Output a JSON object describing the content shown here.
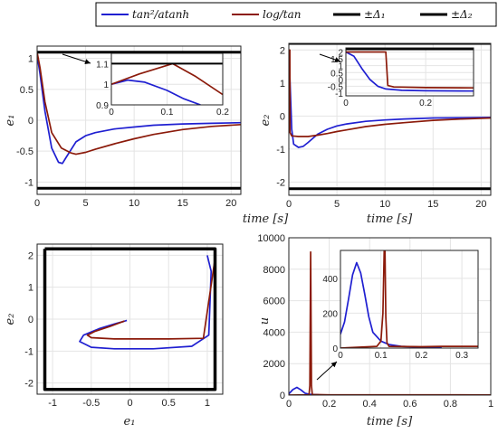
{
  "legend": [
    {
      "label": "tan²/atanh",
      "color": "#1f1fd1",
      "width": 2
    },
    {
      "label": "log/tan",
      "color": "#8b1a0a",
      "width": 2
    },
    {
      "label": "±Δ₁",
      "color": "#000000",
      "width": 3
    },
    {
      "label": "±Δ₂",
      "color": "#000000",
      "width": 3
    }
  ],
  "chart_data": [
    {
      "type": "line",
      "xlabel": "time [s]",
      "ylabel": "e₁",
      "xlim": [
        0,
        21
      ],
      "ylim": [
        -1.2,
        1.2
      ],
      "xticks": [
        0,
        5,
        10,
        15,
        20
      ],
      "xtick_labels": [
        "0",
        "5",
        "10",
        "15",
        "20"
      ],
      "yticks": [
        -1,
        -0.5,
        0,
        0.5,
        1
      ],
      "ytick_labels": [
        "-1",
        "-0.5",
        "0",
        "0.5",
        "1"
      ],
      "grid": true,
      "series": [
        {
          "color": "#1f1fd1",
          "x": [
            0,
            0.3,
            0.8,
            1.5,
            2.2,
            2.6,
            3,
            4,
            5,
            6,
            8,
            10,
            12,
            15,
            18,
            21
          ],
          "y": [
            1.05,
            0.75,
            0.15,
            -0.45,
            -0.68,
            -0.7,
            -0.6,
            -0.35,
            -0.25,
            -0.2,
            -0.14,
            -0.11,
            -0.08,
            -0.06,
            -0.05,
            -0.04
          ]
        },
        {
          "color": "#8b1a0a",
          "x": [
            0,
            0.3,
            0.8,
            1.5,
            2.5,
            3.5,
            4,
            5,
            6,
            8,
            10,
            12,
            15,
            18,
            21
          ],
          "y": [
            1.1,
            0.85,
            0.3,
            -0.2,
            -0.45,
            -0.53,
            -0.55,
            -0.52,
            -0.47,
            -0.38,
            -0.3,
            -0.23,
            -0.15,
            -0.1,
            -0.07
          ]
        },
        {
          "color": "#000000",
          "width": 3,
          "x": [
            0,
            21
          ],
          "y": [
            1.1,
            1.1
          ]
        },
        {
          "color": "#000000",
          "width": 3,
          "x": [
            0,
            21
          ],
          "y": [
            -1.1,
            -1.1
          ]
        }
      ],
      "inset": {
        "xlim": [
          0,
          0.2
        ],
        "ylim": [
          0.9,
          1.15
        ],
        "xticks": [
          0,
          0.1,
          0.2
        ],
        "xtick_labels": [
          "0",
          "0.1",
          "0.2"
        ],
        "yticks": [
          0.9,
          1,
          1.1
        ],
        "ytick_labels": [
          "0.9",
          "1",
          "1.1"
        ],
        "grid": true,
        "series": [
          {
            "color": "#1f1fd1",
            "x": [
              0,
              0.03,
              0.06,
              0.1,
              0.13,
              0.16
            ],
            "y": [
              1.0,
              1.02,
              1.01,
              0.97,
              0.93,
              0.9
            ]
          },
          {
            "color": "#8b1a0a",
            "x": [
              0,
              0.05,
              0.11,
              0.15,
              0.2
            ],
            "y": [
              1.0,
              1.05,
              1.1,
              1.04,
              0.95
            ]
          },
          {
            "color": "#000000",
            "width": 2,
            "x": [
              0,
              0.2
            ],
            "y": [
              1.1,
              1.1
            ]
          }
        ]
      }
    },
    {
      "type": "line",
      "xlabel": "time [s]",
      "ylabel": "e₂",
      "xlim": [
        0,
        21
      ],
      "ylim": [
        -2.4,
        2.2
      ],
      "xticks": [
        0,
        5,
        10,
        15,
        20
      ],
      "xtick_labels": [
        "0",
        "5",
        "10",
        "15",
        "20"
      ],
      "yticks": [
        -2,
        -1,
        0,
        1,
        2
      ],
      "ytick_labels": [
        "-2",
        "-1",
        "0",
        "1",
        "2"
      ],
      "grid": true,
      "series": [
        {
          "color": "#1f1fd1",
          "x": [
            0,
            0.1,
            0.3,
            0.5,
            1,
            1.5,
            2,
            3,
            4,
            5,
            6,
            8,
            10,
            12,
            15,
            18,
            21
          ],
          "y": [
            2.0,
            1.2,
            -0.4,
            -0.85,
            -0.95,
            -0.92,
            -0.8,
            -0.55,
            -0.4,
            -0.3,
            -0.24,
            -0.16,
            -0.12,
            -0.09,
            -0.06,
            -0.05,
            -0.04
          ]
        },
        {
          "color": "#8b1a0a",
          "x": [
            0,
            0.1,
            0.12,
            0.3,
            1,
            2,
            3,
            4,
            5,
            6,
            8,
            10,
            12,
            15,
            18,
            21
          ],
          "y": [
            2.0,
            2.0,
            -0.5,
            -0.6,
            -0.62,
            -0.62,
            -0.58,
            -0.53,
            -0.47,
            -0.42,
            -0.32,
            -0.25,
            -0.2,
            -0.13,
            -0.09,
            -0.06
          ]
        },
        {
          "color": "#000000",
          "width": 3,
          "x": [
            0,
            21
          ],
          "y": [
            2.2,
            2.2
          ]
        },
        {
          "color": "#000000",
          "width": 3,
          "x": [
            0,
            21
          ],
          "y": [
            -2.2,
            -2.2
          ]
        }
      ],
      "inset": {
        "xlim": [
          0,
          0.32
        ],
        "ylim": [
          -1.2,
          2.3
        ],
        "xticks": [
          0,
          0.2
        ],
        "xtick_labels": [
          "0",
          "0.2"
        ],
        "yticks": [
          -1,
          -0.5,
          0,
          0.5,
          1,
          1.5,
          2
        ],
        "ytick_labels": [
          "-1",
          "-0.5",
          "0",
          "0.5",
          "1",
          "1.5",
          "2"
        ],
        "grid": true,
        "series": [
          {
            "color": "#1f1fd1",
            "x": [
              0,
              0.02,
              0.04,
              0.06,
              0.08,
              0.1,
              0.14,
              0.2,
              0.32
            ],
            "y": [
              2.0,
              1.7,
              0.8,
              0.0,
              -0.5,
              -0.7,
              -0.8,
              -0.83,
              -0.85
            ]
          },
          {
            "color": "#8b1a0a",
            "x": [
              0,
              0.1,
              0.105,
              0.12,
              0.2,
              0.32
            ],
            "y": [
              2.0,
              2.0,
              -0.45,
              -0.55,
              -0.6,
              -0.62
            ]
          },
          {
            "color": "#000000",
            "width": 2,
            "x": [
              0,
              0.32
            ],
            "y": [
              2.2,
              2.2
            ]
          }
        ]
      }
    },
    {
      "type": "line",
      "xlabel": "e₁",
      "ylabel": "e₂",
      "xlim": [
        -1.2,
        1.2
      ],
      "ylim": [
        -2.35,
        2.35
      ],
      "xticks": [
        -1,
        -0.5,
        0,
        0.5,
        1
      ],
      "xtick_labels": [
        "-1",
        "-0.5",
        "0",
        "0.5",
        "1"
      ],
      "yticks": [
        -2,
        -1,
        0,
        1,
        2
      ],
      "ytick_labels": [
        "-2",
        "-1",
        "0",
        "1",
        "2"
      ],
      "grid": true,
      "series": [
        {
          "color": "#1f1fd1",
          "x": [
            1.0,
            1.05,
            1.02,
            0.8,
            0.3,
            -0.2,
            -0.5,
            -0.65,
            -0.6,
            -0.4,
            -0.2,
            -0.08,
            -0.04
          ],
          "y": [
            2.0,
            1.5,
            -0.5,
            -0.85,
            -0.93,
            -0.93,
            -0.88,
            -0.7,
            -0.5,
            -0.3,
            -0.15,
            -0.07,
            -0.04
          ]
        },
        {
          "color": "#8b1a0a",
          "x": [
            1.1,
            1.1,
            0.95,
            0.5,
            -0.2,
            -0.5,
            -0.55,
            -0.45,
            -0.25,
            -0.07
          ],
          "y": [
            2.0,
            1.9,
            -0.6,
            -0.62,
            -0.62,
            -0.58,
            -0.5,
            -0.38,
            -0.22,
            -0.06
          ]
        },
        {
          "color": "#000000",
          "width": 3.5,
          "x": [
            -1.1,
            1.1,
            1.1,
            -1.1,
            -1.1
          ],
          "y": [
            2.2,
            2.2,
            -2.2,
            -2.2,
            2.2
          ]
        }
      ]
    },
    {
      "type": "line",
      "xlabel": "time [s]",
      "ylabel": "u",
      "xlim": [
        0,
        1
      ],
      "ylim": [
        0,
        10000
      ],
      "xticks": [
        0,
        0.2,
        0.4,
        0.6,
        0.8,
        1
      ],
      "xtick_labels": [
        "0",
        "0.2",
        "0.4",
        "0.6",
        "0.8",
        "1"
      ],
      "yticks": [
        0,
        2000,
        4000,
        6000,
        8000,
        10000
      ],
      "ytick_labels": [
        "0",
        "2000",
        "4000",
        "6000",
        "8000",
        "10000"
      ],
      "grid": true,
      "series": [
        {
          "color": "#1f1fd1",
          "x": [
            0,
            0.02,
            0.04,
            0.06,
            0.08,
            0.1,
            0.15,
            0.2,
            1
          ],
          "y": [
            80,
            350,
            490,
            330,
            120,
            50,
            20,
            10,
            0
          ]
        },
        {
          "color": "#8b1a0a",
          "x": [
            0,
            0.1,
            0.104,
            0.108,
            0.112,
            0.116,
            0.2,
            1
          ],
          "y": [
            0,
            20,
            600,
            9100,
            600,
            40,
            20,
            10
          ]
        }
      ],
      "inset": {
        "xlim": [
          0,
          0.34
        ],
        "ylim": [
          0,
          560
        ],
        "xticks": [
          0,
          0.1,
          0.2,
          0.3
        ],
        "xtick_labels": [
          "0",
          "0.1",
          "0.2",
          "0.3"
        ],
        "yticks": [
          0,
          200,
          400
        ],
        "ytick_labels": [
          "0",
          "200",
          "400"
        ],
        "grid": true,
        "series": [
          {
            "color": "#1f1fd1",
            "x": [
              0,
              0.01,
              0.02,
              0.03,
              0.04,
              0.05,
              0.06,
              0.07,
              0.08,
              0.1,
              0.12,
              0.15,
              0.2,
              0.25
            ],
            "y": [
              80,
              150,
              280,
              420,
              490,
              430,
              310,
              180,
              90,
              40,
              20,
              10,
              5,
              2
            ]
          },
          {
            "color": "#8b1a0a",
            "x": [
              0,
              0.09,
              0.1,
              0.105,
              0.108,
              0.11,
              0.112,
              0.115,
              0.12,
              0.2,
              0.25,
              0.34
            ],
            "y": [
              0,
              10,
              40,
              200,
              560,
              560,
              180,
              30,
              10,
              8,
              10,
              10
            ]
          }
        ]
      }
    }
  ]
}
